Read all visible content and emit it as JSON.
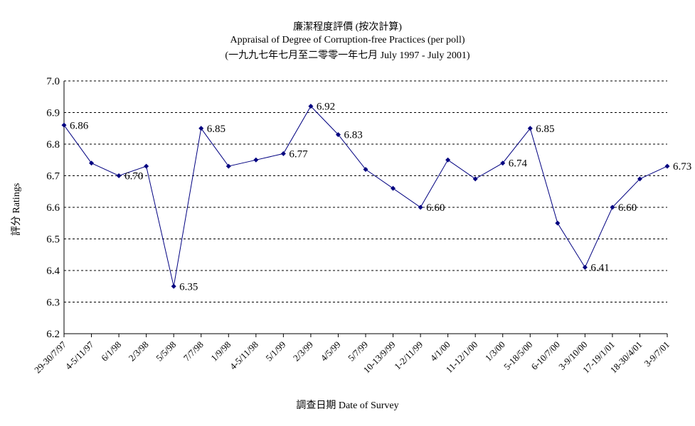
{
  "chart_data": {
    "type": "line",
    "title": "廉潔程度評價 (按次計算)",
    "subtitle": "Appraisal of Degree of Corruption-free Practices (per poll)",
    "subtitle2": "(一九九七年七月至二零零一年七月 July 1997 - July 2001)",
    "xlabel": "調查日期 Date of Survey",
    "ylabel": "評分 Ratings",
    "ylim": [
      6.2,
      7.0
    ],
    "yticks": [
      "6.2",
      "6.3",
      "6.4",
      "6.5",
      "6.6",
      "6.7",
      "6.8",
      "6.9",
      "7.0"
    ],
    "grid": true,
    "line_color": "#000080",
    "categories": [
      "29-30/7/97",
      "4-5/11/97",
      "6/1/98",
      "2/3/98",
      "5/5/98",
      "7/7/98",
      "1/9/98",
      "4-5/11/98",
      "5/1/99",
      "2/3/99",
      "4/5/99",
      "5/7/99",
      "10-13/9/99",
      "1-2/11/99",
      "4/1/00",
      "11-12/1/00",
      "1/3/00",
      "5-18/5/00",
      "6-10/7/00",
      "3-9/10/00",
      "17-19/1/01",
      "18-30/4/01",
      "3-9/7/01"
    ],
    "values": [
      6.86,
      6.74,
      6.7,
      6.73,
      6.35,
      6.85,
      6.73,
      6.75,
      6.77,
      6.92,
      6.83,
      6.72,
      6.66,
      6.6,
      6.75,
      6.69,
      6.74,
      6.85,
      6.55,
      6.41,
      6.6,
      6.69,
      6.73
    ],
    "data_labels": [
      {
        "index": 0,
        "text": "6.86"
      },
      {
        "index": 2,
        "text": "6.70"
      },
      {
        "index": 4,
        "text": "6.35"
      },
      {
        "index": 5,
        "text": "6.85"
      },
      {
        "index": 8,
        "text": "6.77"
      },
      {
        "index": 9,
        "text": "6.92"
      },
      {
        "index": 10,
        "text": "6.83"
      },
      {
        "index": 13,
        "text": "6.60"
      },
      {
        "index": 16,
        "text": "6.74"
      },
      {
        "index": 17,
        "text": "6.85"
      },
      {
        "index": 19,
        "text": "6.41"
      },
      {
        "index": 20,
        "text": "6.60"
      },
      {
        "index": 22,
        "text": "6.73"
      }
    ]
  }
}
